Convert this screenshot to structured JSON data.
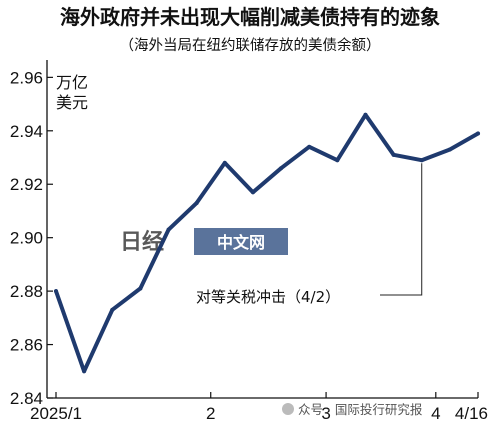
{
  "header": {
    "title": "海外政府并未出现大幅削减美债持有的迹象",
    "subtitle": "（海外当局在纽约联储存放的美债余额）"
  },
  "watermark": {
    "logo_text": "日经",
    "label": "中文网"
  },
  "source": {
    "text": "众号 · 国际投行研究报"
  },
  "chart_data": {
    "type": "line",
    "title": "海外政府并未出现大幅削减美债持有的迹象",
    "subtitle": "（海外当局在纽约联储存放的美债余额）",
    "unit_label_line1": "万亿",
    "unit_label_line2": "美元",
    "ylim": [
      2.84,
      2.965
    ],
    "yticks": [
      2.84,
      2.86,
      2.88,
      2.9,
      2.92,
      2.94,
      2.96
    ],
    "ytick_labels": [
      "2.84",
      "2.86",
      "2.88",
      "2.90",
      "2.92",
      "2.94",
      "2.96"
    ],
    "xticks": [
      {
        "index": 0,
        "label": "2025/1"
      },
      {
        "index": 5.5,
        "label": "2"
      },
      {
        "index": 9.6,
        "label": "3"
      },
      {
        "index": 13.5,
        "label": "4"
      },
      {
        "index": 15,
        "label": "4/16"
      }
    ],
    "series": [
      {
        "color": "#1f3a6e",
        "values": [
          2.88,
          2.85,
          2.873,
          2.881,
          2.903,
          2.913,
          2.928,
          2.917,
          2.926,
          2.934,
          2.929,
          2.946,
          2.931,
          2.929,
          2.933,
          2.939
        ]
      }
    ],
    "annotation": {
      "text": "对等关税冲击（4/2）",
      "point_index": 13
    },
    "grid": false
  }
}
